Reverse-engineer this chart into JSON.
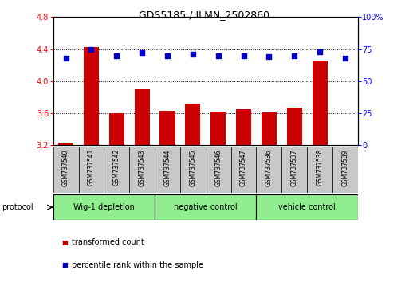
{
  "title": "GDS5185 / ILMN_2502860",
  "samples": [
    "GSM737540",
    "GSM737541",
    "GSM737542",
    "GSM737543",
    "GSM737544",
    "GSM737545",
    "GSM737546",
    "GSM737547",
    "GSM737536",
    "GSM737537",
    "GSM737538",
    "GSM737539"
  ],
  "transformed_count": [
    3.23,
    4.42,
    3.6,
    3.9,
    3.63,
    3.72,
    3.62,
    3.65,
    3.61,
    3.67,
    4.26,
    3.2
  ],
  "percentile_rank": [
    68,
    75,
    70,
    72,
    70,
    71,
    70,
    70,
    69,
    70,
    73,
    68
  ],
  "groups": [
    {
      "label": "Wig-1 depletion",
      "start": 0,
      "end": 3
    },
    {
      "label": "negative control",
      "start": 4,
      "end": 7
    },
    {
      "label": "vehicle control",
      "start": 8,
      "end": 11
    }
  ],
  "ylim_left": [
    3.2,
    4.8
  ],
  "ylim_right": [
    0,
    100
  ],
  "yticks_left": [
    3.2,
    3.6,
    4.0,
    4.4,
    4.8
  ],
  "yticks_right": [
    0,
    25,
    50,
    75,
    100
  ],
  "bar_color": "#cc0000",
  "dot_color": "#0000cc",
  "group_bg_color": "#90ee90",
  "sample_bg_color": "#c8c8c8",
  "legend_bar_label": "transformed count",
  "legend_dot_label": "percentile rank within the sample",
  "protocol_label": "protocol"
}
